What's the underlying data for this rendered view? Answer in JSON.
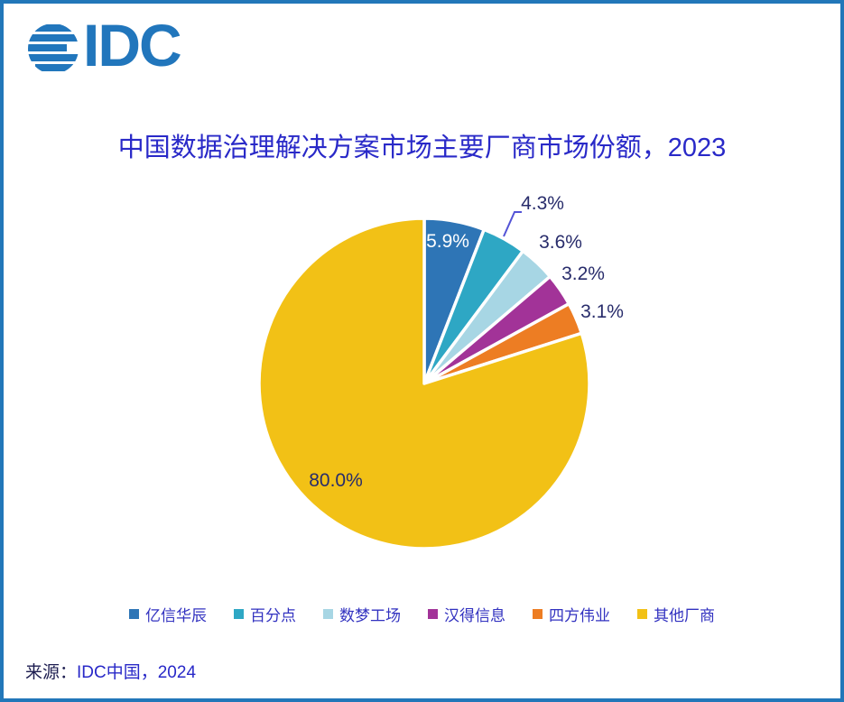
{
  "logo": {
    "text": "IDC"
  },
  "title": "中国数据治理解决方案市场主要厂商市场份额，2023",
  "source": {
    "prefix": "来源：",
    "value": "IDC中国，2024"
  },
  "colors": {
    "border": "#2277B9",
    "logo": "#2176BC",
    "title_text": "#2929C8",
    "value_label_text": "#282C6B",
    "inside_blue_label_text": "#FFFFFF",
    "legend_text": "#3232C0",
    "leader_line": "#5353D6"
  },
  "chart_data": {
    "type": "pie",
    "title": "中国数据治理解决方案市场主要厂商市场份额，2023",
    "categories": [
      "亿信华辰",
      "百分点",
      "数梦工场",
      "汉得信息",
      "四方伟业",
      "其他厂商"
    ],
    "values": [
      5.9,
      4.3,
      3.6,
      3.2,
      3.1,
      80.0
    ],
    "labels": [
      "5.9%",
      "4.3%",
      "3.6%",
      "3.2%",
      "3.1%",
      "80.0%"
    ],
    "colors": [
      "#2E75B6",
      "#2EA7C4",
      "#A7D6E4",
      "#A23398",
      "#ED7D23",
      "#F2C116"
    ],
    "start_angle": "12-oclock, clockwise",
    "slice_gap_color": "#FFFFFF",
    "legend_position": "bottom",
    "source": "来源：IDC中国，2024"
  }
}
